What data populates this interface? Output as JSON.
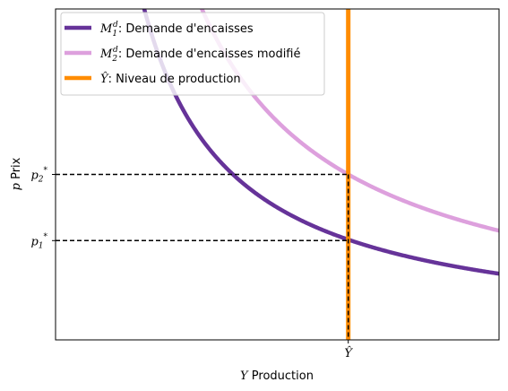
{
  "chart_data": {
    "type": "line",
    "title": "",
    "xlabel": "Y Production",
    "xlabel_parts": {
      "symbol": "Y",
      "text": " Production"
    },
    "ylabel": "p Prix",
    "ylabel_parts": {
      "symbol": "p",
      "text": " Prix"
    },
    "xlim": [
      0,
      1
    ],
    "ylim": [
      0,
      1
    ],
    "grid": false,
    "legend_position": "top-left",
    "curve_scale_note": "curves follow p = k / x",
    "series": [
      {
        "name": "M_1^d: Demande d'encaisses",
        "legend_symbol": "M",
        "legend_sub": "1",
        "legend_sup": "d",
        "legend_text": ": Demande d'encaisses",
        "kind": "hyperbola",
        "k": 0.2,
        "color": "#663399"
      },
      {
        "name": "M_2^d: Demande d'encaisses modifié",
        "legend_symbol": "M",
        "legend_sub": "2",
        "legend_sup": "d",
        "legend_text": ": Demande d'encaisses modifié",
        "kind": "hyperbola",
        "k": 0.33,
        "color": "#dda0dd"
      },
      {
        "name": "Ŷ: Niveau de production",
        "legend_symbol": "Ŷ",
        "legend_text": ": Niveau de production",
        "kind": "vertical",
        "x": 0.66,
        "color": "#ff8c00"
      }
    ],
    "annotations": {
      "x_tick": {
        "value": 0.66,
        "label": "Ŷ"
      },
      "y_ticks": [
        {
          "value": 0.3,
          "label_symbol": "p",
          "label_sub": "1",
          "label_sup": "*"
        },
        {
          "value": 0.5,
          "label_symbol": "p",
          "label_sub": "2",
          "label_sup": "*"
        }
      ],
      "dashed_lines": true
    }
  }
}
